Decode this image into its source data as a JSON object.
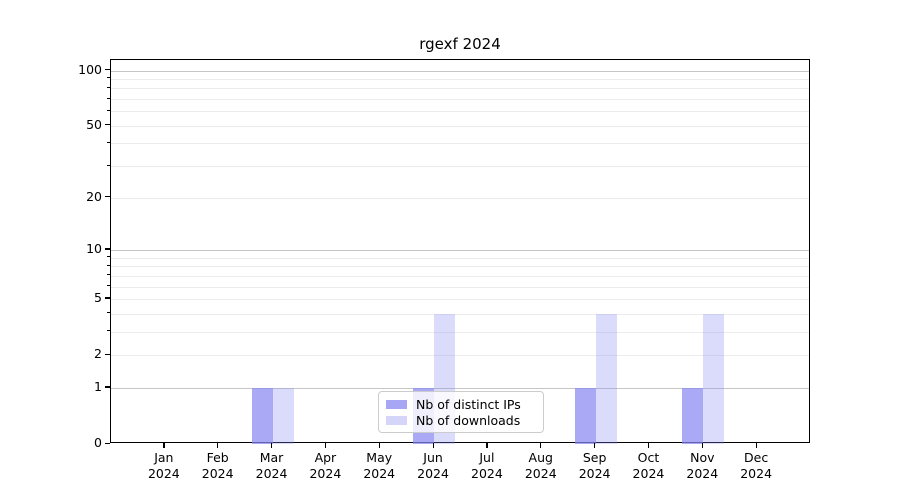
{
  "chart_data": {
    "type": "bar",
    "title": "rgexf 2024",
    "x": {
      "months": [
        "Jan",
        "Feb",
        "Mar",
        "Apr",
        "May",
        "Jun",
        "Jul",
        "Aug",
        "Sep",
        "Oct",
        "Nov",
        "Dec"
      ],
      "year": "2024"
    },
    "series": [
      {
        "name": "Nb of distinct IPs",
        "base_color": "#8888f2",
        "alpha": 0.72,
        "values": [
          0,
          0,
          1,
          0,
          0,
          1,
          0,
          0,
          1,
          0,
          1,
          0
        ]
      },
      {
        "name": "Nb of downloads",
        "base_color": "#8888f2",
        "alpha": 0.3,
        "values": [
          0,
          0,
          1,
          0,
          0,
          4,
          0,
          0,
          4,
          0,
          4,
          0
        ]
      }
    ],
    "y_axis": {
      "scale": "log1p",
      "min": 0,
      "max": 114,
      "tick_values": [
        0,
        1,
        2,
        5,
        10,
        20,
        50,
        100
      ],
      "major_gridlines": [
        1,
        10,
        100
      ],
      "minor_gridlines": [
        2,
        3,
        4,
        5,
        6,
        7,
        8,
        9,
        20,
        30,
        40,
        50,
        60,
        70,
        80,
        90
      ],
      "major_grid_color": "#c6c6c6",
      "minor_grid_color": "#ececec"
    },
    "legend_position": "bottom-center",
    "grid": "horizontal",
    "frame_color": "#000000"
  }
}
